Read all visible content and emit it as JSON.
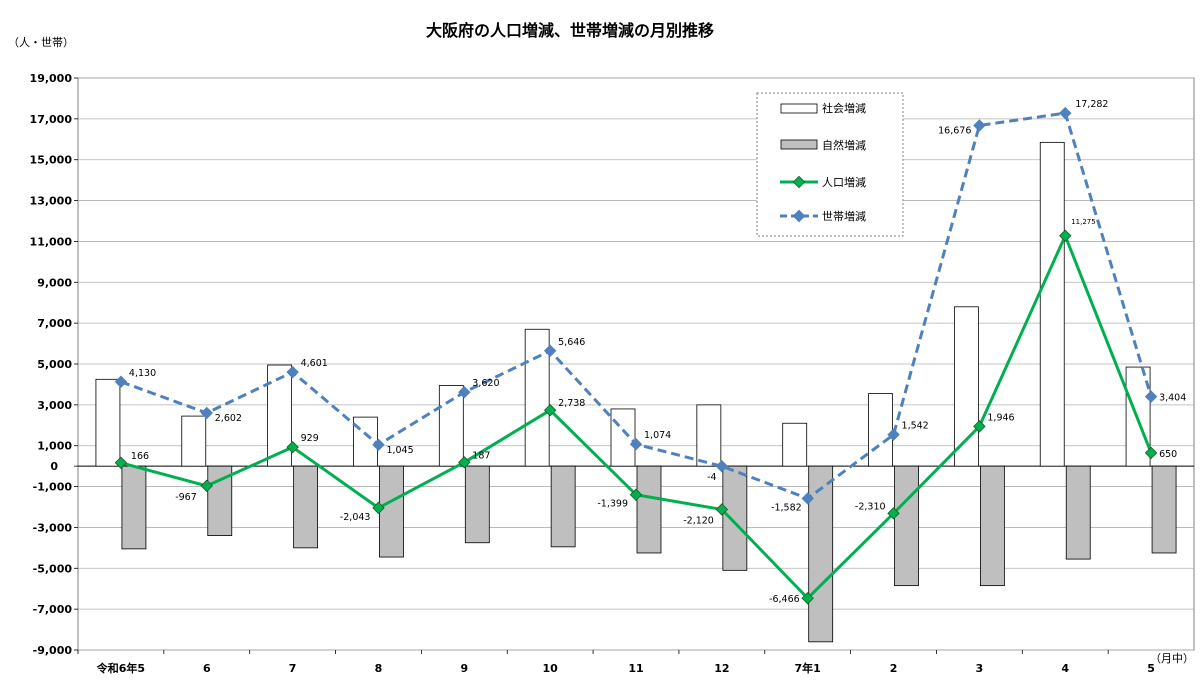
{
  "chart_data": {
    "type": "bar",
    "title": "大阪府の人口増減、世帯増減の月別推移",
    "ylabel": "（人・世帯）",
    "x_unit": "（月中）",
    "ylim": [
      -9000,
      19000
    ],
    "yticks": [
      19000,
      17000,
      15000,
      13000,
      11000,
      9000,
      7000,
      5000,
      3000,
      1000,
      0,
      -1000,
      -3000,
      -5000,
      -7000,
      -9000
    ],
    "ytick_labels": [
      "19,000",
      "17,000",
      "15,000",
      "13,000",
      "11,000",
      "9,000",
      "7,000",
      "5,000",
      "3,000",
      "1,000",
      "0",
      "-1,000",
      "-3,000",
      "-5,000",
      "-7,000",
      "-9,000"
    ],
    "categories": [
      "令和6年5",
      "6",
      "7",
      "8",
      "9",
      "10",
      "11",
      "12",
      "7年1",
      "2",
      "3",
      "4",
      "5"
    ],
    "grid": true,
    "legend_position": "top-right",
    "series": [
      {
        "name": "社会増減",
        "type": "bar",
        "color": "#ffffff",
        "values": [
          4250,
          2450,
          4950,
          2400,
          3950,
          6700,
          2800,
          3000,
          2100,
          3550,
          7800,
          15850,
          4850
        ]
      },
      {
        "name": "自然増減",
        "type": "bar",
        "color": "#bfbfbf",
        "values": [
          -4050,
          -3400,
          -4000,
          -4450,
          -3750,
          -3950,
          -4250,
          -5100,
          -8600,
          -5850,
          -5850,
          -4550,
          -4250
        ]
      },
      {
        "name": "人口増減",
        "type": "line",
        "color": "#00b050",
        "values": [
          166,
          -967,
          929,
          -2043,
          187,
          2738,
          -1399,
          -2120,
          -6466,
          -2310,
          1946,
          11275,
          650
        ],
        "labels": [
          "166",
          "-967",
          "929",
          "-2,043",
          "187",
          "2,738",
          "-1,399",
          "-2,120",
          "-6,466",
          "-2,310",
          "1,946",
          "11,275",
          "650"
        ]
      },
      {
        "name": "世帯増減",
        "type": "line",
        "color": "#4f81bd",
        "dashed": true,
        "values": [
          4130,
          2602,
          4601,
          1045,
          3620,
          5646,
          1074,
          -4,
          -1582,
          1542,
          16676,
          17282,
          3404
        ],
        "labels": [
          "4,130",
          "2,602",
          "4,601",
          "1,045",
          "3,620",
          "5,646",
          "1,074",
          "-4",
          "-1,582",
          "1,542",
          "16,676",
          "17,282",
          "3,404"
        ]
      }
    ]
  }
}
